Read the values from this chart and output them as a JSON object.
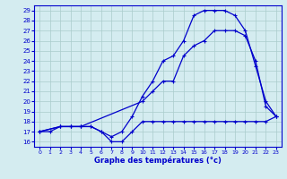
{
  "xlabel": "Graphe des températures (°c)",
  "bg_color": "#d4ecf0",
  "line_color": "#0000cc",
  "grid_color": "#aacccc",
  "xlim": [
    -0.5,
    23.5
  ],
  "ylim": [
    15.5,
    29.5
  ],
  "xticks": [
    0,
    1,
    2,
    3,
    4,
    5,
    6,
    7,
    8,
    9,
    10,
    11,
    12,
    13,
    14,
    15,
    16,
    17,
    18,
    19,
    20,
    21,
    22,
    23
  ],
  "yticks": [
    16,
    17,
    18,
    19,
    20,
    21,
    22,
    23,
    24,
    25,
    26,
    27,
    28,
    29
  ],
  "line1_x": [
    0,
    1,
    2,
    3,
    4,
    5,
    6,
    7,
    8,
    9,
    10,
    11,
    12,
    13,
    14,
    15,
    16,
    17,
    18,
    19,
    20,
    21,
    22,
    23
  ],
  "line1_y": [
    17,
    17,
    17.5,
    17.5,
    17.5,
    17.5,
    17,
    16,
    16,
    17,
    18,
    18,
    18,
    18,
    18,
    18,
    18,
    18,
    18,
    18,
    18,
    18,
    18,
    18.5
  ],
  "line2_x": [
    0,
    2,
    3,
    4,
    5,
    6,
    7,
    8,
    9,
    10,
    11,
    12,
    13,
    14,
    15,
    16,
    17,
    18,
    19,
    20,
    21,
    22,
    23
  ],
  "line2_y": [
    17,
    17.5,
    17.5,
    17.5,
    17.5,
    17,
    16.5,
    17,
    18.5,
    20.5,
    22,
    24,
    24.5,
    26,
    28.5,
    29,
    29,
    29,
    28.5,
    27,
    23.5,
    20,
    18.5
  ],
  "line3_x": [
    0,
    2,
    3,
    4,
    10,
    11,
    12,
    13,
    14,
    15,
    16,
    17,
    18,
    19,
    20,
    21,
    22,
    23
  ],
  "line3_y": [
    17,
    17.5,
    17.5,
    17.5,
    20,
    21,
    22,
    22,
    24.5,
    25.5,
    26,
    27,
    27,
    27,
    26.5,
    24,
    19.5,
    18.5
  ]
}
